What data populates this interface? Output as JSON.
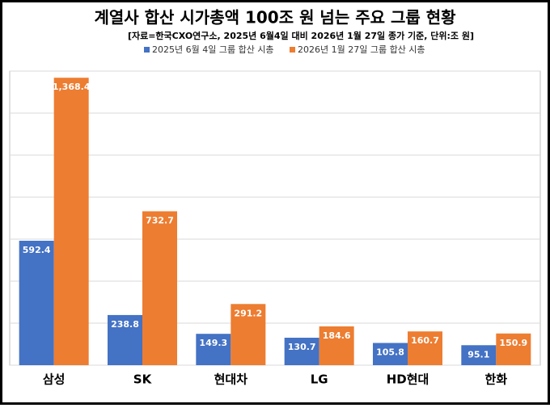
{
  "chart_data": {
    "type": "bar",
    "title": "계열사 합산 시가총액 100조 원 넘는 주요 그룹 현황",
    "subtitle": "[자료=한국CXO연구소, 2025년 6월4일 대비 2026년 1월 27일 종가 기준, 단위:조 원]",
    "categories": [
      "삼성",
      "SK",
      "현대차",
      "LG",
      "HD현대",
      "한화"
    ],
    "series": [
      {
        "name": "2025년 6월 4일 그룹 합산 시총",
        "color": "#4472c4",
        "values": [
          592.4,
          238.8,
          149.3,
          130.7,
          105.8,
          95.1
        ]
      },
      {
        "name": "2026년 1월 27일 그룹 합산 시총",
        "color": "#ed7d31",
        "values": [
          1368.4,
          732.7,
          291.2,
          184.6,
          160.7,
          150.9
        ],
        "value_labels": [
          "1,368.4",
          "732.7",
          "291.2",
          "184.6",
          "160.7",
          "150.9"
        ]
      }
    ],
    "ylim": [
      0,
      1400
    ],
    "yticks": [
      0,
      200,
      400,
      600,
      800,
      1000,
      1200,
      1400
    ],
    "grid": true,
    "legend": "top"
  }
}
